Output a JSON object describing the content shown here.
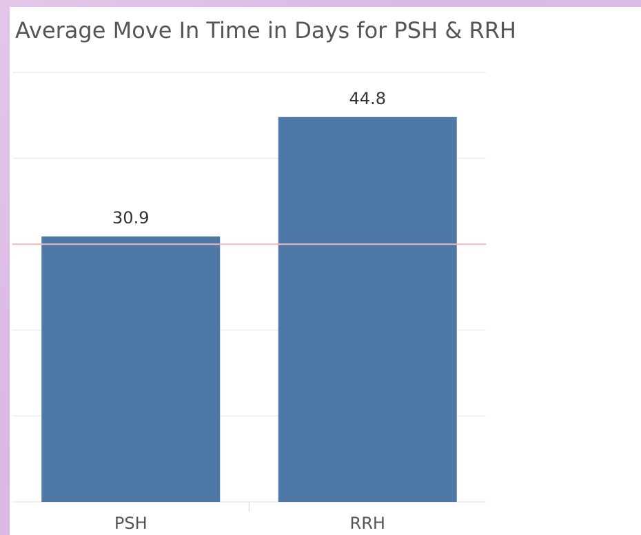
{
  "chart_data": {
    "type": "bar",
    "title": "Average Move In Time  in Days for PSH & RRH",
    "categories": [
      "PSH",
      "RRH"
    ],
    "values": [
      30.9,
      44.8
    ],
    "color": "#4e79a7",
    "ylim": [
      0,
      50
    ],
    "yticks": [
      0,
      10,
      20,
      30,
      40,
      50
    ],
    "grid": true,
    "reference_line": 30,
    "reference_color": "#f2b8b8"
  }
}
